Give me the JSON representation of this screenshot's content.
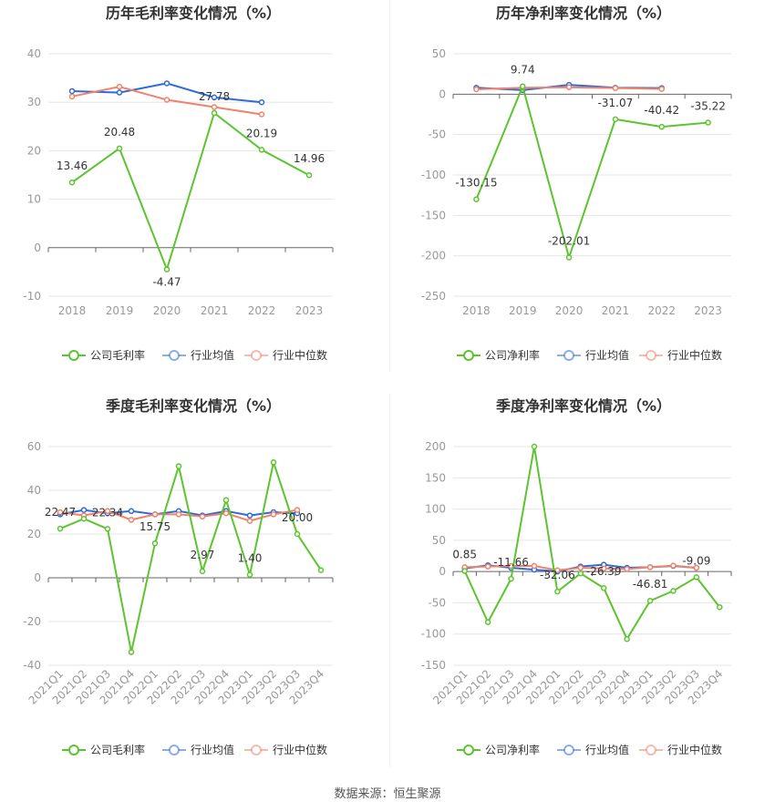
{
  "source": "数据来源：恒生聚源",
  "colors": {
    "company": "#5cc42e",
    "avg": "#2e6bd6",
    "median": "#f0826a",
    "grid": "#e6e6e6",
    "axis": "#666666",
    "tick": "#999999"
  },
  "chart_data": [
    {
      "type": "line",
      "title": "历年毛利率变化情况（%）",
      "categories": [
        "2018",
        "2019",
        "2020",
        "2021",
        "2022",
        "2023"
      ],
      "ylim": [
        -10,
        40
      ],
      "yticks": [
        -10,
        0,
        10,
        20,
        30,
        40
      ],
      "grid": true,
      "legend": "bottom",
      "series": [
        {
          "name": "公司毛利率",
          "key": "company",
          "values": [
            13.46,
            20.48,
            -4.47,
            27.78,
            20.19,
            14.96
          ],
          "labels": [
            "13.46",
            "20.48",
            "-4.47",
            "27.78",
            "20.19",
            "14.96"
          ]
        },
        {
          "name": "行业均值",
          "key": "avg",
          "values": [
            32.3,
            32.0,
            33.9,
            31.0,
            30.0,
            null
          ]
        },
        {
          "name": "行业中位数",
          "key": "median",
          "values": [
            31.2,
            33.2,
            30.5,
            29.0,
            27.5,
            null
          ]
        }
      ]
    },
    {
      "type": "line",
      "title": "历年净利率变化情况（%）",
      "categories": [
        "2018",
        "2019",
        "2020",
        "2021",
        "2022",
        "2023"
      ],
      "ylim": [
        -250,
        50
      ],
      "yticks": [
        -250,
        -200,
        -150,
        -100,
        -50,
        0,
        50
      ],
      "grid": true,
      "legend": "bottom",
      "series": [
        {
          "name": "公司净利率",
          "key": "company",
          "values": [
            -130.15,
            9.74,
            -202.01,
            -31.07,
            -40.42,
            -35.22
          ],
          "labels": [
            "-130.15",
            "9.74",
            "-202.01",
            "-31.07",
            "-40.42",
            "-35.22"
          ]
        },
        {
          "name": "行业均值",
          "key": "avg",
          "values": [
            8.0,
            5.0,
            11.5,
            8.0,
            7.5,
            null
          ]
        },
        {
          "name": "行业中位数",
          "key": "median",
          "values": [
            6.0,
            8.0,
            8.5,
            7.5,
            6.5,
            null
          ]
        }
      ]
    },
    {
      "type": "line",
      "title": "季度毛利率变化情况（%）",
      "categories": [
        "2021Q1",
        "2021Q2",
        "2021Q3",
        "2021Q4",
        "2022Q1",
        "2022Q2",
        "2022Q3",
        "2022Q4",
        "2023Q1",
        "2023Q2",
        "2023Q3",
        "2023Q4"
      ],
      "ylim": [
        -40,
        60
      ],
      "yticks": [
        -40,
        -20,
        0,
        20,
        40,
        60
      ],
      "grid": true,
      "legend": "bottom",
      "series": [
        {
          "name": "公司毛利率",
          "key": "company",
          "values": [
            22.47,
            27.0,
            22.34,
            -34.0,
            15.75,
            51.0,
            2.97,
            35.5,
            1.4,
            52.8,
            20.0,
            3.5
          ],
          "labels": [
            "22.47",
            null,
            "22.34",
            null,
            "15.75",
            null,
            "2.97",
            null,
            "1.40",
            null,
            "20.00",
            null
          ]
        },
        {
          "name": "行业均值",
          "key": "avg",
          "values": [
            29.0,
            31.0,
            29.5,
            30.5,
            29.0,
            30.5,
            28.5,
            30.5,
            28.5,
            30.0,
            29.5,
            null
          ]
        },
        {
          "name": "行业中位数",
          "key": "median",
          "values": [
            30.0,
            28.5,
            30.5,
            26.5,
            29.0,
            29.0,
            28.0,
            29.5,
            26.0,
            29.0,
            31.0,
            null
          ]
        }
      ]
    },
    {
      "type": "line",
      "title": "季度净利率变化情况（%）",
      "categories": [
        "2021Q1",
        "2021Q2",
        "2021Q3",
        "2021Q4",
        "2022Q1",
        "2022Q2",
        "2022Q3",
        "2022Q4",
        "2023Q1",
        "2023Q2",
        "2023Q3",
        "2023Q4"
      ],
      "ylim": [
        -150,
        200
      ],
      "yticks": [
        -150,
        -100,
        -50,
        0,
        50,
        100,
        150,
        200
      ],
      "grid": true,
      "legend": "bottom",
      "series": [
        {
          "name": "公司净利率",
          "key": "company",
          "values": [
            0.85,
            -81.0,
            -11.66,
            200.0,
            -32.06,
            -3.0,
            -26.39,
            -108.0,
            -46.81,
            -31.0,
            -9.09,
            -57.0
          ],
          "labels": [
            "0.85",
            null,
            "-11.66",
            null,
            "-32.06",
            null,
            "-26.39",
            null,
            "-46.81",
            null,
            "-9.09",
            null
          ]
        },
        {
          "name": "行业均值",
          "key": "avg",
          "values": [
            5.0,
            10.0,
            6.0,
            3.0,
            0.0,
            8.0,
            11.0,
            6.0,
            7.0,
            9.0,
            6.0,
            null
          ]
        },
        {
          "name": "行业中位数",
          "key": "median",
          "values": [
            7.0,
            8.0,
            9.0,
            9.0,
            2.0,
            6.0,
            5.0,
            4.0,
            7.0,
            9.5,
            6.0,
            null
          ]
        }
      ]
    }
  ]
}
